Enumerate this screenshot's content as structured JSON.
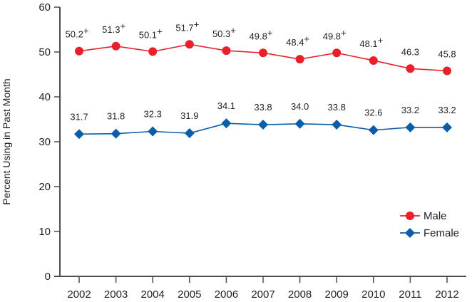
{
  "chart_data": {
    "type": "line",
    "title": "",
    "xlabel": "",
    "ylabel": "Percent Using in Past Month",
    "ylim": [
      0,
      60
    ],
    "yticks": [
      0,
      10,
      20,
      30,
      40,
      50,
      60
    ],
    "categories": [
      "2002",
      "2003",
      "2004",
      "2005",
      "2006",
      "2007",
      "2008",
      "2009",
      "2010",
      "2011",
      "2012"
    ],
    "grid": false,
    "legend_position": "lower right",
    "series": [
      {
        "name": "Male",
        "color": "#e8202a",
        "marker": "circle",
        "values": [
          50.2,
          51.3,
          50.1,
          51.7,
          50.3,
          49.8,
          48.4,
          49.8,
          48.1,
          46.3,
          45.8
        ],
        "labels": [
          "50.2",
          "51.3",
          "50.1",
          "51.7",
          "50.3",
          "49.8",
          "48.4",
          "49.8",
          "48.1",
          "46.3",
          "45.8"
        ],
        "significance_marker": "+",
        "significant": [
          true,
          true,
          true,
          true,
          true,
          true,
          true,
          true,
          true,
          false,
          false
        ]
      },
      {
        "name": "Female",
        "color": "#0a5ea8",
        "marker": "diamond",
        "values": [
          31.7,
          31.8,
          32.3,
          31.9,
          34.1,
          33.8,
          34.0,
          33.8,
          32.6,
          33.2,
          33.2
        ],
        "labels": [
          "31.7",
          "31.8",
          "32.3",
          "31.9",
          "34.1",
          "33.8",
          "34.0",
          "33.8",
          "32.6",
          "33.2",
          "33.2"
        ],
        "significance_marker": "+",
        "significant": [
          false,
          false,
          false,
          false,
          false,
          false,
          false,
          false,
          false,
          false,
          false
        ]
      }
    ]
  }
}
